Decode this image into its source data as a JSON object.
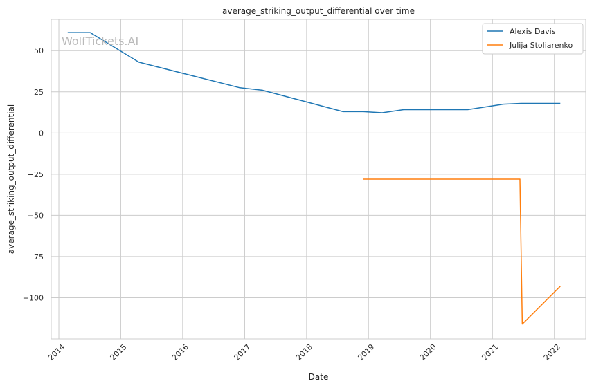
{
  "watermark": "WolfTickets.AI",
  "chart_data": {
    "type": "line",
    "title": "average_striking_output_differential over time",
    "xlabel": "Date",
    "ylabel": "average_striking_output_differential",
    "x_ticks": [
      "2014",
      "2015",
      "2016",
      "2017",
      "2018",
      "2019",
      "2020",
      "2021",
      "2022"
    ],
    "y_ticks": [
      "50",
      "25",
      "0",
      "−25",
      "−50",
      "−75",
      "−100"
    ],
    "y_tick_values": [
      50,
      25,
      0,
      -25,
      -50,
      -75,
      -100
    ],
    "xlim": [
      "2013-11-17",
      "2022-07-05"
    ],
    "ylim": [
      -125,
      69
    ],
    "grid": true,
    "legend_position": "top-right",
    "series": [
      {
        "name": "Alexis Davis",
        "color": "#1f77b4",
        "points": [
          [
            "2014-02-22",
            61
          ],
          [
            "2014-07-05",
            61
          ],
          [
            "2015-04-18",
            43
          ],
          [
            "2016-12-03",
            27.5
          ],
          [
            "2017-04-15",
            26
          ],
          [
            "2018-08-04",
            13
          ],
          [
            "2018-12-01",
            13
          ],
          [
            "2019-03-23",
            12.3
          ],
          [
            "2019-07-27",
            14.2
          ],
          [
            "2020-08-08",
            14.2
          ],
          [
            "2021-03-06",
            17.5
          ],
          [
            "2021-06-19",
            18
          ],
          [
            "2022-02-05",
            18
          ]
        ]
      },
      {
        "name": "Julija Stoliarenko",
        "color": "#ff7f0e",
        "points": [
          [
            "2018-11-30",
            -28
          ],
          [
            "2021-06-12",
            -28
          ],
          [
            "2021-06-26",
            -116
          ],
          [
            "2022-02-05",
            -93
          ]
        ]
      }
    ]
  }
}
